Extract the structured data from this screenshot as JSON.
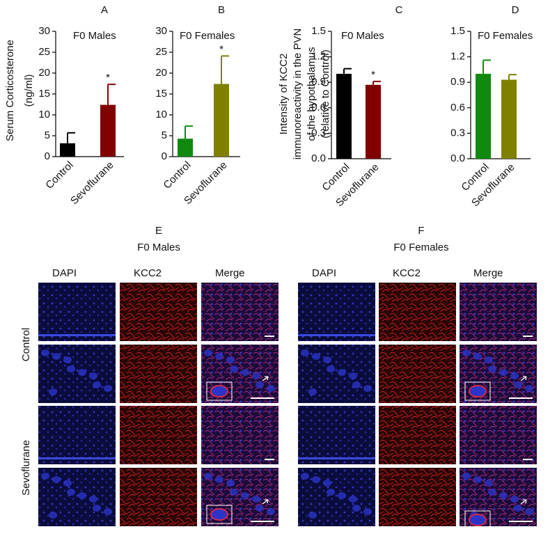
{
  "chart_data": [
    {
      "type": "bar",
      "panel": "A",
      "title": "F0 Males",
      "ylabel": [
        "Serum Corticosterone",
        "(ng/ml)"
      ],
      "categories": [
        "Control",
        "Sevoflurane"
      ],
      "values": [
        3.2,
        12.4
      ],
      "errors": [
        2.5,
        4.9
      ],
      "colors": [
        "#000000",
        "#800000"
      ],
      "annotations": [
        null,
        "*"
      ],
      "ylim": [
        0,
        30
      ],
      "yticks": [
        0,
        5,
        10,
        15,
        20,
        25,
        30
      ]
    },
    {
      "type": "bar",
      "panel": "B",
      "title": "F0 Females",
      "categories": [
        "Control",
        "Sevoflurane"
      ],
      "values": [
        4.3,
        17.4
      ],
      "errors": [
        3.0,
        6.7
      ],
      "colors": [
        "#0f8a0f",
        "#808000"
      ],
      "annotations": [
        null,
        "*"
      ],
      "ylim": [
        0,
        30
      ],
      "yticks": [
        0,
        5,
        10,
        15,
        20,
        25,
        30
      ]
    },
    {
      "type": "bar",
      "panel": "C",
      "title": "F0 Males",
      "ylabel": [
        "Intensity of KCC2",
        "immunoreactivity in the PVN",
        "of the hypothalamus",
        "(relative to Control)"
      ],
      "categories": [
        "Control",
        "Sevoflurane"
      ],
      "values": [
        1.0,
        0.87
      ],
      "errors": [
        0.06,
        0.04
      ],
      "colors": [
        "#000000",
        "#800000"
      ],
      "annotations": [
        null,
        "*"
      ],
      "ylim": [
        0,
        1.5
      ],
      "yticks": [
        {
          "value": 0,
          "label": "0.0"
        },
        0.3,
        0.6,
        0.9,
        1.2,
        1.5
      ]
    },
    {
      "type": "bar",
      "panel": "D",
      "title": "F0 Females",
      "categories": [
        "Control",
        "Sevoflurane"
      ],
      "values": [
        1.0,
        0.93
      ],
      "errors": [
        0.16,
        0.06
      ],
      "colors": [
        "#0f8a0f",
        "#808000"
      ],
      "ylim": [
        0,
        1.5
      ],
      "yticks": [
        {
          "value": 0,
          "label": "0.0"
        },
        0.3,
        0.6,
        0.9,
        1.2,
        1.5
      ]
    }
  ],
  "image_panels": [
    {
      "panel": "E",
      "title": "F0 Males",
      "columns": [
        "DAPI",
        "KCC2",
        "Merge"
      ]
    },
    {
      "panel": "F",
      "title": "F0 Females",
      "columns": [
        "DAPI",
        "KCC2",
        "Merge"
      ]
    }
  ],
  "row_labels": [
    "Control",
    "Sevoflurane"
  ]
}
